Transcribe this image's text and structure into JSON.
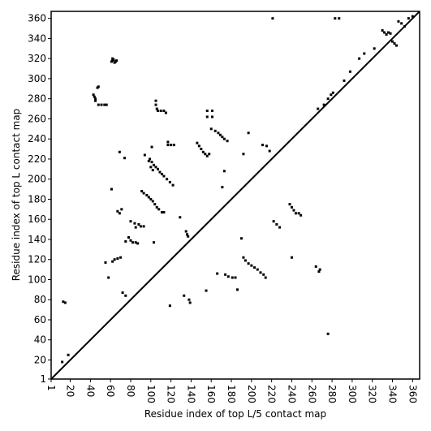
{
  "chart_data": {
    "type": "scatter",
    "x_label": "Residue index of top L/5 contact map",
    "y_label": "Residue index of top L contact map",
    "xlim": [
      1,
      367
    ],
    "ylim": [
      1,
      367
    ],
    "xticks": [
      1,
      20,
      40,
      60,
      80,
      100,
      120,
      140,
      160,
      180,
      200,
      220,
      240,
      260,
      280,
      300,
      320,
      340,
      360
    ],
    "yticks": [
      1,
      20,
      40,
      60,
      80,
      100,
      120,
      140,
      160,
      180,
      200,
      220,
      240,
      260,
      280,
      300,
      320,
      340,
      360
    ],
    "series": [
      {
        "type": "scatter",
        "color": "#000000",
        "x": [
          61,
          62,
          63,
          64,
          65,
          62,
          66,
          47,
          48,
          43,
          44,
          45,
          45,
          48,
          51,
          54,
          56,
          105,
          105,
          106,
          107,
          110,
          113,
          115,
          117,
          117,
          120,
          123,
          156,
          161,
          156,
          161,
          160,
          164,
          167,
          169,
          171,
          173,
          176,
          146,
          148,
          150,
          152,
          154,
          156,
          158,
          99,
          101,
          103,
          105,
          107,
          109,
          111,
          113,
          116,
          119,
          122,
          100,
          102,
          98,
          91,
          93,
          96,
          98,
          100,
          102,
          104,
          106,
          108,
          111,
          113,
          80,
          84,
          88,
          90,
          93,
          85,
          78,
          80,
          82,
          85,
          87,
          75,
          64,
          67,
          70,
          62,
          67,
          69,
          71,
          135,
          136,
          137,
          174,
          177,
          181,
          184,
          192,
          194,
          197,
          200,
          203,
          206,
          209,
          212,
          214,
          238,
          240,
          242,
          244,
          247,
          249,
          222,
          225,
          228,
          211,
          215,
          218,
          330,
          332,
          334,
          336,
          338,
          340,
          342,
          344,
          346,
          349,
          352,
          356,
          360,
          292,
          298,
          307,
          312,
          322,
          272,
          276,
          279,
          281,
          266,
          267,
          268,
          264,
          276,
          221,
          283,
          287,
          13,
          15,
          18,
          12,
          155,
          240,
          129,
          119,
          138,
          139,
          133,
          186,
          190,
          166,
          192,
          197,
          171,
          173,
          55,
          61,
          69,
          74,
          58,
          72,
          75,
          101,
          94,
          103
        ],
        "values": [
          317,
          318,
          319,
          316,
          317,
          320,
          318,
          291,
          292,
          284,
          282,
          280,
          278,
          274,
          274,
          274,
          274,
          278,
          274,
          270,
          268,
          268,
          268,
          266,
          237,
          234,
          234,
          234,
          268,
          268,
          262,
          262,
          250,
          248,
          246,
          244,
          242,
          240,
          238,
          236,
          233,
          230,
          227,
          225,
          223,
          225,
          220,
          217,
          214,
          212,
          210,
          207,
          205,
          203,
          200,
          197,
          194,
          212,
          209,
          218,
          188,
          186,
          184,
          182,
          180,
          178,
          175,
          172,
          170,
          167,
          167,
          158,
          156,
          155,
          153,
          153,
          152,
          142,
          139,
          137,
          137,
          136,
          138,
          120,
          121,
          122,
          118,
          168,
          166,
          170,
          148,
          145,
          143,
          105,
          103,
          102,
          102,
          122,
          119,
          116,
          114,
          112,
          110,
          107,
          105,
          102,
          175,
          172,
          169,
          166,
          166,
          164,
          158,
          155,
          152,
          234,
          233,
          228,
          348,
          346,
          344,
          346,
          345,
          337,
          335,
          333,
          357,
          355,
          352,
          360,
          362,
          298,
          307,
          320,
          325,
          330,
          274,
          280,
          284,
          286,
          270,
          108,
          110,
          113,
          46,
          360,
          360,
          360,
          78,
          77,
          25,
          18,
          89,
          122,
          162,
          74,
          80,
          77,
          84,
          90,
          141,
          106,
          225,
          246,
          192,
          208,
          117,
          190,
          227,
          221,
          102,
          87,
          84,
          232,
          224,
          137
        ]
      },
      {
        "type": "line",
        "color": "#000000",
        "x": [
          1,
          367
        ],
        "values": [
          1,
          367
        ]
      }
    ]
  }
}
